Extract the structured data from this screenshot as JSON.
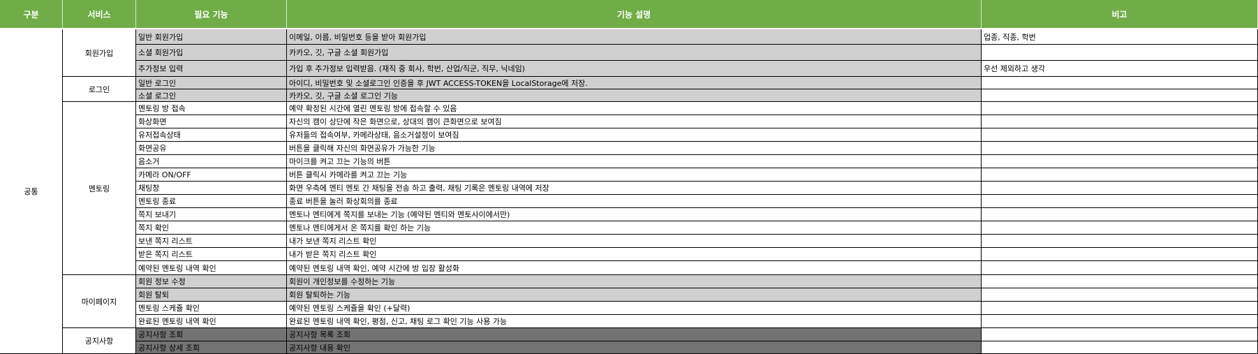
{
  "headers": [
    "구분",
    "서비스",
    "필요 기능",
    "기능 설명",
    "비고"
  ],
  "category": "공통",
  "services": {
    "signup": "회원가입",
    "login": "로그인",
    "mentoring": "멘토링",
    "mypage": "마이페이지",
    "notice": "공지사항"
  },
  "rows": [
    {
      "feature": "일반 회원가입",
      "desc": "이메일, 이름, 비밀번호 등을 받아 회원가입",
      "note": "업종, 직종, 학번"
    },
    {
      "feature": "소셜 회원가입",
      "desc": "카카오, 깃, 구글 소셜 회원가입",
      "note": ""
    },
    {
      "feature": "추가정보 입력",
      "desc": "가입 후 추가정보 입력받음. (재직 중 회사, 학번, 산업/직군, 직무, 닉네임)",
      "note": "우선 제외하고 생각"
    },
    {
      "feature": "일반 로그인",
      "desc": "아이디, 비밀번호 및 소셜로그인 인증을 후 JWT ACCESS-TOKEN을 LocalStorage에 저장.",
      "note": ""
    },
    {
      "feature": "소셜 로그인",
      "desc": "카카오, 깃, 구글 소셜 로그인 기능",
      "note": ""
    },
    {
      "feature": "멘토링 방 접속",
      "desc": "예약 확정된 시간에 열린 멘토링 방에 접속할 수 있음",
      "note": ""
    },
    {
      "feature": "화상화면",
      "desc": "자신의 캠이 상단에 작은 화면으로, 상대의 캠이 큰화면으로 보여짐",
      "note": ""
    },
    {
      "feature": "유저접속상태",
      "desc": "유저들의 접속여부, 카메라상태, 음소거설정이 보여짐",
      "note": ""
    },
    {
      "feature": "화면공유",
      "desc": "버튼을 클릭해 자신의 화면공유가 가능한 기능",
      "note": ""
    },
    {
      "feature": "음소거",
      "desc": "마이크를 켜고 끄는 기능의 버튼",
      "note": ""
    },
    {
      "feature": "카메라 ON/OFF",
      "desc": "버튼 클릭시 카메라를 켜고 끄는 기능",
      "note": ""
    },
    {
      "feature": "채팅창",
      "desc": "화면 우측에 멘티 멘토 간 채팅을 전송 하고 출력, 채팅 기록은 멘토링 내역에 저장",
      "note": ""
    },
    {
      "feature": "멘토링 종료",
      "desc": "종료 버튼을 눌러 화상회의를 종료",
      "note": ""
    },
    {
      "feature": "쪽지 보내기",
      "desc": "멘토나 멘티에게 쪽지를 보내는 기능 (예약된 멘티와 멘토사이에서만)",
      "note": ""
    },
    {
      "feature": "쪽지 확인",
      "desc": "멘토나 멘티에게서 온 쪽지를 확인 하는 기능",
      "note": ""
    },
    {
      "feature": "보낸 쪽지 리스트",
      "desc": "내가 보낸 쪽지 리스트 확인",
      "note": ""
    },
    {
      "feature": "받은 쪽지 리스트",
      "desc": "내가 받은 쪽지 리스트 확인",
      "note": ""
    },
    {
      "feature": "예약된 멘토링 내역 확인",
      "desc": "예약된 멘토링 내역 확인, 예약 시간에 방 입장 활성화",
      "note": ""
    },
    {
      "feature": "회원 정보 수정",
      "desc": "회원이 개인정보를 수정하는 기능",
      "note": ""
    },
    {
      "feature": "회원 탈퇴",
      "desc": "회원 탈퇴하는 기능",
      "note": ""
    },
    {
      "feature": "멘토링 스케쥴 확인",
      "desc": "예약된 멘토링 스케쥴을 확인 (+달력)",
      "note": ""
    },
    {
      "feature": "완료된 멘토링 내역 확인",
      "desc": "완료된 멘토링 내역 확인, 평점, 신고, 채팅 로그 확인 기능 사용 가능",
      "note": ""
    },
    {
      "feature": "공지사항 조회",
      "desc": "공지사항 목록 조회",
      "note": ""
    },
    {
      "feature": "공지사항 상세 조회",
      "desc": "공지사항 내용 확인",
      "note": ""
    }
  ]
}
